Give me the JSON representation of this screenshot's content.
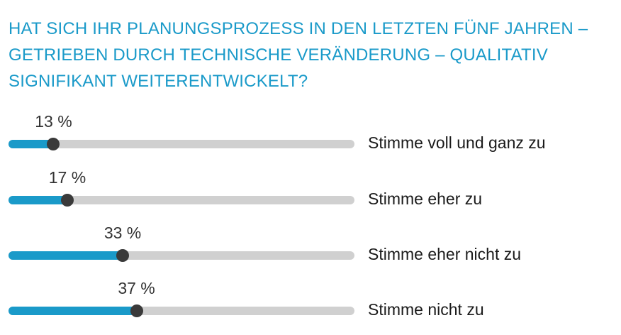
{
  "colors": {
    "title": "#1a9ac9",
    "fill": "#1a9ac9",
    "track": "#d0d0d0",
    "knob": "#3a3a3a"
  },
  "chart_data": {
    "type": "bar",
    "title": "HAT SICH IHR PLANUNGSPROZESS IN DEN LETZTEN FÜNF JAHREN –\nGETRIEBEN DURCH TECHNISCHE VERÄNDERUNG – QUALITATIV\nSIGNIFIKANT WEITERENTWICKELT?",
    "xlim": [
      0,
      100
    ],
    "categories": [
      "Stimme voll und ganz zu",
      "Stimme eher zu",
      "Stimme eher nicht zu",
      "Stimme nicht zu"
    ],
    "values": [
      13,
      17,
      33,
      37
    ],
    "value_labels": [
      "13 %",
      "17 %",
      "33 %",
      "37 %"
    ]
  }
}
